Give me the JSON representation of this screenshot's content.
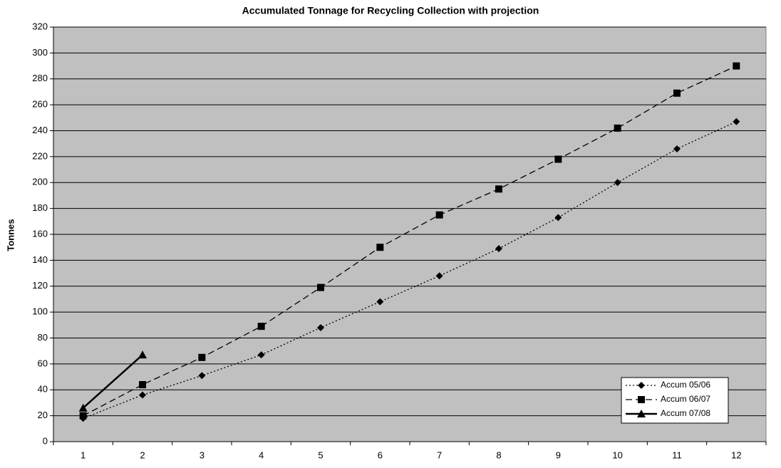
{
  "chart_data": {
    "type": "line",
    "title": "Accumulated Tonnage for Recycling Collection with projection",
    "y_label": "Tonnes",
    "categories": [
      1,
      2,
      3,
      4,
      5,
      6,
      7,
      8,
      9,
      10,
      11,
      12
    ],
    "series": [
      {
        "name": "Accum 05/06",
        "color": "#000000",
        "dash": "dotted",
        "marker": "diamond",
        "values": [
          18,
          36,
          51,
          67,
          88,
          108,
          128,
          149,
          173,
          200,
          226,
          247
        ]
      },
      {
        "name": "Accum 06/07",
        "color": "#000000",
        "dash": "dashed",
        "marker": "square",
        "values": [
          20,
          44,
          65,
          89,
          119,
          150,
          175,
          195,
          218,
          242,
          269,
          290
        ]
      },
      {
        "name": "Accum 07/08",
        "color": "#000000",
        "dash": "solid",
        "marker": "triangle",
        "values": [
          26,
          67,
          null,
          null,
          null,
          null,
          null,
          null,
          null,
          null,
          null,
          null
        ]
      }
    ],
    "ylim": [
      0,
      320
    ],
    "yticks": [
      0,
      20,
      40,
      60,
      80,
      100,
      120,
      140,
      160,
      180,
      200,
      220,
      240,
      260,
      280,
      300,
      320
    ],
    "grid": true,
    "background": "#c0c0c0",
    "legend": "lower-right"
  }
}
